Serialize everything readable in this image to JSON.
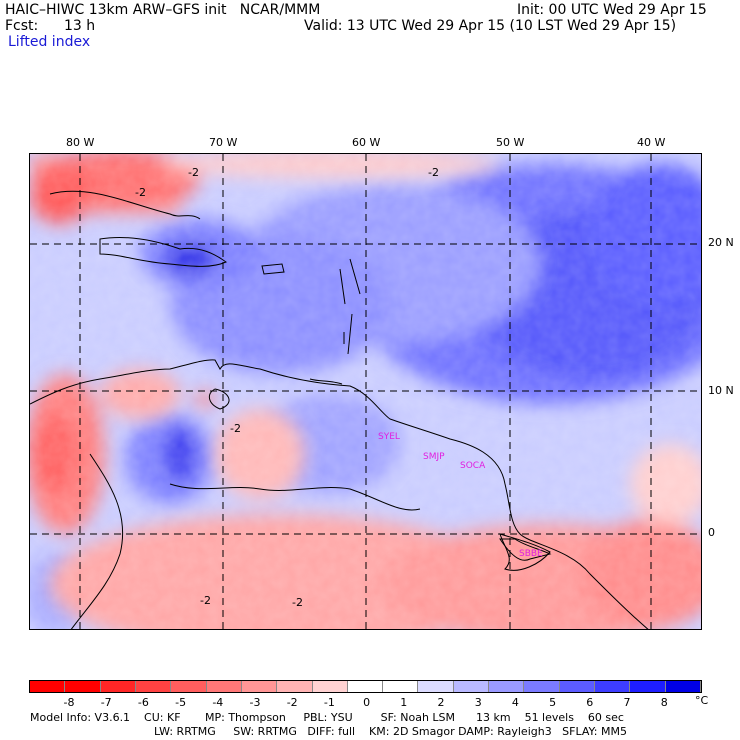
{
  "header": {
    "title_left": "HAIC–HIWC 13km ARW–GFS init   NCAR/MMM",
    "fcst_label": "Fcst:",
    "fcst_value": "13 h",
    "init": "Init: 00 UTC Wed 29 Apr 15",
    "valid": "Valid: 13 UTC Wed 29 Apr 15 (10 LST Wed 29 Apr 15)",
    "field": "Lifted index"
  },
  "map": {
    "lon_labels": [
      "80 W",
      "70 W",
      "60 W",
      "50 W",
      "40 W"
    ],
    "lat_labels": [
      "20 N",
      "10 N",
      "0"
    ],
    "contour_labels": [
      "-2",
      "-2",
      "-2",
      "-2",
      "-2",
      "-2"
    ],
    "stations": [
      "SYEL",
      "SMJP",
      "SOCA",
      "SBBE"
    ],
    "station_color": "#e020e0"
  },
  "colorbar": {
    "labels": [
      "-8",
      "-7",
      "-6",
      "-5",
      "-4",
      "-3",
      "-2",
      "-1",
      "0",
      "1",
      "2",
      "3",
      "4",
      "5",
      "6",
      "7",
      "8"
    ],
    "unit": "°C",
    "colors": [
      "#ff0000",
      "#ff2626",
      "#ff4242",
      "#ff5e5e",
      "#ff7878",
      "#ff9696",
      "#ffb4b4",
      "#ffd2d2",
      "#ffffff",
      "#dcdcff",
      "#b9b9ff",
      "#9a9aff",
      "#7b7bff",
      "#5c5cff",
      "#3d3dff",
      "#1e1eff",
      "#0000e6"
    ]
  },
  "model_info": {
    "line1": "Model Info: V3.6.1    CU: KF       MP: Thompson     PBL: YSU        SF: Noah LSM      13 km    51 levels    60 sec",
    "line2": "LW: RRTMG     SW: RRTMG   DIFF: full    KM: 2D Smagor DAMP: Rayleigh3   SFLAY: MM5"
  }
}
